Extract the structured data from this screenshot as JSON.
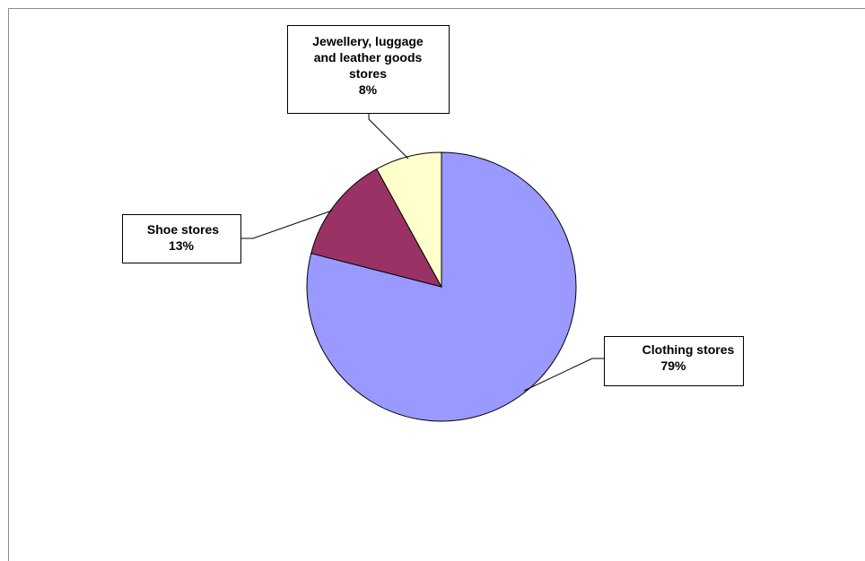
{
  "chart_data": {
    "type": "pie",
    "start_angle_deg": 0,
    "direction": "clockwise",
    "slices": [
      {
        "label_lines": [
          "Clothing stores"
        ],
        "percent_label": "79%",
        "value": 79,
        "color": "#9999ff"
      },
      {
        "label_lines": [
          "Shoe stores"
        ],
        "percent_label": "13%",
        "value": 13,
        "color": "#993366"
      },
      {
        "label_lines": [
          "Jewellery, luggage",
          "and leather goods",
          "stores"
        ],
        "percent_label": "8%",
        "value": 8,
        "color": "#ffffcc"
      }
    ]
  }
}
